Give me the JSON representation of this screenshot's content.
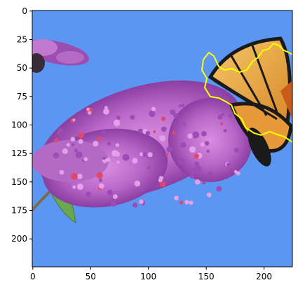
{
  "figure": {
    "x_ticks": [
      "0",
      "50",
      "100",
      "150",
      "200"
    ],
    "y_ticks": [
      "0",
      "25",
      "50",
      "75",
      "100",
      "125",
      "150",
      "175",
      "200"
    ],
    "x_range": [
      0,
      224
    ],
    "y_range": [
      0,
      224
    ],
    "y_direction": "top-down",
    "contour_color": "#ffff00",
    "sky_color": "#5b97f2",
    "subjects": [
      "butterfly-bush-flower-cluster",
      "monarch-butterfly",
      "green-leaf"
    ]
  }
}
